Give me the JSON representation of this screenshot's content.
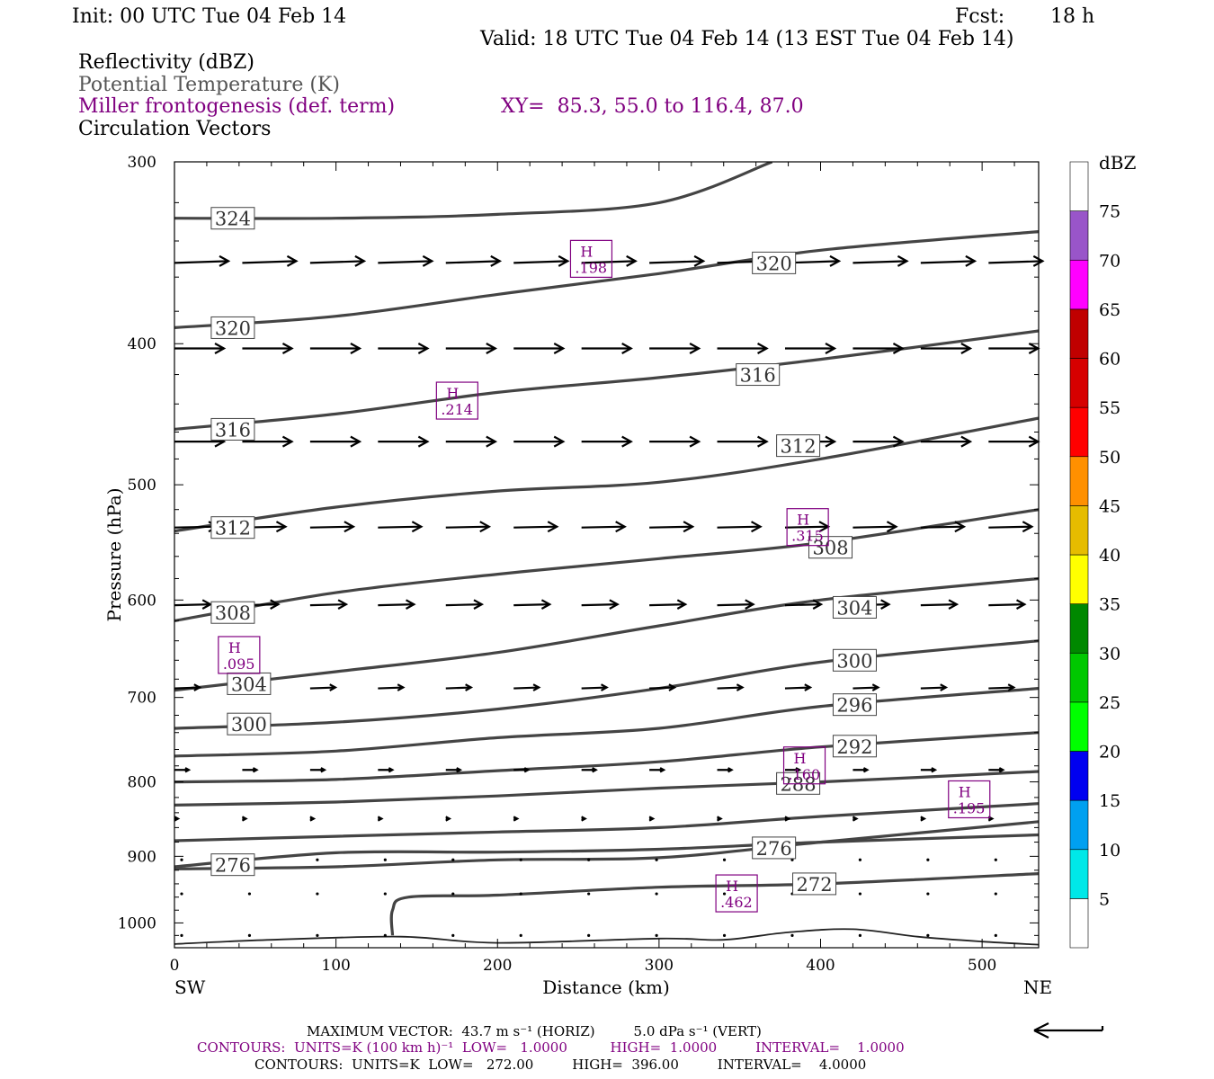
{
  "header": {
    "init": "Init: 00 UTC Tue 04 Feb 14",
    "fcst_label": "Fcst:",
    "fcst_value": "18 h",
    "valid": "Valid: 18 UTC Tue 04 Feb 14 (13 EST Tue 04 Feb 14)",
    "field1": "Reflectivity (dBZ)",
    "field2": "Potential Temperature (K)",
    "field3": "Miller frontogenesis (def. term)",
    "xy": "XY=  85.3, 55.0 to 116.4, 87.0",
    "field4": "Circulation Vectors"
  },
  "colors": {
    "theta": "#444444",
    "frontogenesis": "#800080",
    "vectors": "#000000"
  },
  "chart_data": {
    "type": "cross-section",
    "xlabel": "Distance (km)",
    "ylabel": "Pressure (hPa)",
    "xlim": [
      0,
      535
    ],
    "ylim": [
      1040,
      300
    ],
    "y_log": true,
    "x_ticks": [
      0,
      100,
      200,
      300,
      400,
      500
    ],
    "y_ticks": [
      300,
      400,
      500,
      600,
      700,
      800,
      900,
      1000
    ],
    "x_tick_labels": [
      "0",
      "100",
      "200",
      "300",
      "400",
      "500"
    ],
    "y_tick_labels": [
      "300",
      "400",
      "500",
      "600",
      "700",
      "800",
      "900",
      "1000"
    ],
    "left_end": "SW",
    "right_end": "NE",
    "colorbar": {
      "title": "dBZ",
      "labels": [
        "5",
        "10",
        "15",
        "20",
        "25",
        "30",
        "35",
        "40",
        "45",
        "50",
        "55",
        "60",
        "65",
        "70",
        "75"
      ],
      "colors": [
        "#ffffff",
        "#00e8e8",
        "#00a0f0",
        "#0000f0",
        "#00ff00",
        "#00c800",
        "#008800",
        "#ffff00",
        "#e6bc00",
        "#ff9000",
        "#ff0000",
        "#d60000",
        "#c00000",
        "#ff00ff",
        "#9955c9",
        "#ffffff"
      ]
    },
    "theta_contours": [
      {
        "value": 324,
        "label": "324",
        "points": [
          [
            0,
            328
          ],
          [
            100,
            328
          ],
          [
            200,
            326
          ],
          [
            300,
            320
          ],
          [
            370,
            300
          ]
        ],
        "label_at": [
          25,
          328
        ]
      },
      {
        "value": 320,
        "label": "320",
        "points": [
          [
            0,
            390
          ],
          [
            100,
            383
          ],
          [
            200,
            370
          ],
          [
            300,
            358
          ],
          [
            400,
            345
          ],
          [
            535,
            335
          ]
        ],
        "label_at": [
          25,
          390
        ],
        "label2": "320",
        "label2_at": [
          360,
          352
        ]
      },
      {
        "value": 316,
        "label": "316",
        "points": [
          [
            0,
            458
          ],
          [
            100,
            447
          ],
          [
            200,
            432
          ],
          [
            300,
            422
          ],
          [
            400,
            410
          ],
          [
            535,
            392
          ]
        ],
        "label_at": [
          25,
          458
        ],
        "label2": "316",
        "label2_at": [
          350,
          420
        ]
      },
      {
        "value": 312,
        "label": "312",
        "points": [
          [
            0,
            538
          ],
          [
            100,
            518
          ],
          [
            200,
            505
          ],
          [
            300,
            498
          ],
          [
            400,
            480
          ],
          [
            535,
            450
          ]
        ],
        "label_at": [
          25,
          535
        ],
        "label2": "312",
        "label2_at": [
          375,
          470
        ]
      },
      {
        "value": 308,
        "label": "308",
        "points": [
          [
            0,
            620
          ],
          [
            100,
            593
          ],
          [
            200,
            576
          ],
          [
            300,
            562
          ],
          [
            400,
            548
          ],
          [
            535,
            520
          ]
        ],
        "label_at": [
          25,
          612
        ],
        "label2": "308",
        "label2_at": [
          395,
          552
        ]
      },
      {
        "value": 304,
        "label": "304",
        "points": [
          [
            0,
            692
          ],
          [
            100,
            672
          ],
          [
            200,
            652
          ],
          [
            300,
            625
          ],
          [
            400,
            600
          ],
          [
            535,
            580
          ]
        ],
        "label_at": [
          35,
          685
        ],
        "label2": "304",
        "label2_at": [
          410,
          607
        ]
      },
      {
        "value": 300,
        "label": "300",
        "points": [
          [
            0,
            735
          ],
          [
            100,
            728
          ],
          [
            200,
            713
          ],
          [
            300,
            690
          ],
          [
            400,
            662
          ],
          [
            535,
            640
          ]
        ],
        "label_at": [
          35,
          730
        ],
        "label2": "300",
        "label2_at": [
          410,
          660
        ]
      },
      {
        "value": 296,
        "label": "296",
        "points": [
          [
            0,
            768
          ],
          [
            100,
            762
          ],
          [
            200,
            746
          ],
          [
            300,
            735
          ],
          [
            400,
            710
          ],
          [
            535,
            690
          ]
        ],
        "label_at": [
          410,
          708
        ]
      },
      {
        "value": 292,
        "label": "292",
        "points": [
          [
            0,
            800
          ],
          [
            100,
            797
          ],
          [
            200,
            786
          ],
          [
            300,
            775
          ],
          [
            400,
            757
          ],
          [
            535,
            740
          ]
        ],
        "label_at": [
          410,
          756
        ]
      },
      {
        "value": 288,
        "label": "288",
        "points": [
          [
            0,
            830
          ],
          [
            100,
            826
          ],
          [
            200,
            818
          ],
          [
            300,
            808
          ],
          [
            400,
            800
          ],
          [
            535,
            787
          ]
        ],
        "label_at": [
          375,
          802
        ]
      },
      {
        "value": 284,
        "label": "",
        "points": [
          [
            0,
            878
          ],
          [
            100,
            872
          ],
          [
            200,
            866
          ],
          [
            300,
            860
          ],
          [
            400,
            845
          ],
          [
            535,
            828
          ]
        ]
      },
      {
        "value": 280,
        "label": "",
        "points": [
          [
            0,
            918
          ],
          [
            100,
            915
          ],
          [
            200,
            905
          ],
          [
            300,
            902
          ],
          [
            400,
            880
          ],
          [
            535,
            852
          ]
        ]
      },
      {
        "value": 276,
        "label": "276",
        "points": [
          [
            0,
            915
          ],
          [
            100,
            895
          ],
          [
            200,
            894
          ],
          [
            300,
            890
          ],
          [
            400,
            880
          ],
          [
            535,
            870
          ]
        ],
        "label_at": [
          25,
          912
        ],
        "label2": "276",
        "label2_at": [
          360,
          888
        ]
      },
      {
        "value": 272,
        "label": "272",
        "points": [
          [
            135,
            1020
          ],
          [
            135,
            980
          ],
          [
            145,
            960
          ],
          [
            200,
            957
          ],
          [
            300,
            945
          ],
          [
            400,
            940
          ],
          [
            535,
            925
          ]
        ],
        "label_at": [
          385,
          940
        ]
      }
    ],
    "frontogenesis_maxima": [
      {
        "label": "H",
        "value": ".198",
        "x": 258,
        "p": 350
      },
      {
        "label": "H",
        "value": ".214",
        "x": 175,
        "p": 438
      },
      {
        "label": "H",
        "value": ".315",
        "x": 392,
        "p": 535
      },
      {
        "label": "H",
        "value": ".095",
        "x": 40,
        "p": 655
      },
      {
        "label": "H",
        "value": ".160",
        "x": 390,
        "p": 780
      },
      {
        "label": "H",
        "value": ".195",
        "x": 492,
        "p": 823
      },
      {
        "label": "H",
        "value": ".462",
        "x": 348,
        "p": 955
      }
    ],
    "contour_line_272_surface": [
      [
        0,
        1034
      ],
      [
        60,
        1027
      ],
      [
        140,
        1022
      ],
      [
        200,
        1032
      ],
      [
        300,
        1025
      ],
      [
        340,
        1027
      ],
      [
        380,
        1015
      ],
      [
        420,
        1010
      ],
      [
        460,
        1022
      ],
      [
        500,
        1030
      ],
      [
        535,
        1035
      ]
    ]
  },
  "footer": {
    "max_vector": "MAXIMUM VECTOR:  43.7 m s⁻¹ (HORIZ)         5.0 dPa s⁻¹ (VERT)",
    "contours1": "CONTOURS:  UNITS=K (100 km h)⁻¹  LOW=   1.0000          HIGH=  1.0000         INTERVAL=    1.0000",
    "contours2": "CONTOURS:  UNITS=K  LOW=   272.00         HIGH=  396.00         INTERVAL=    4.0000"
  }
}
